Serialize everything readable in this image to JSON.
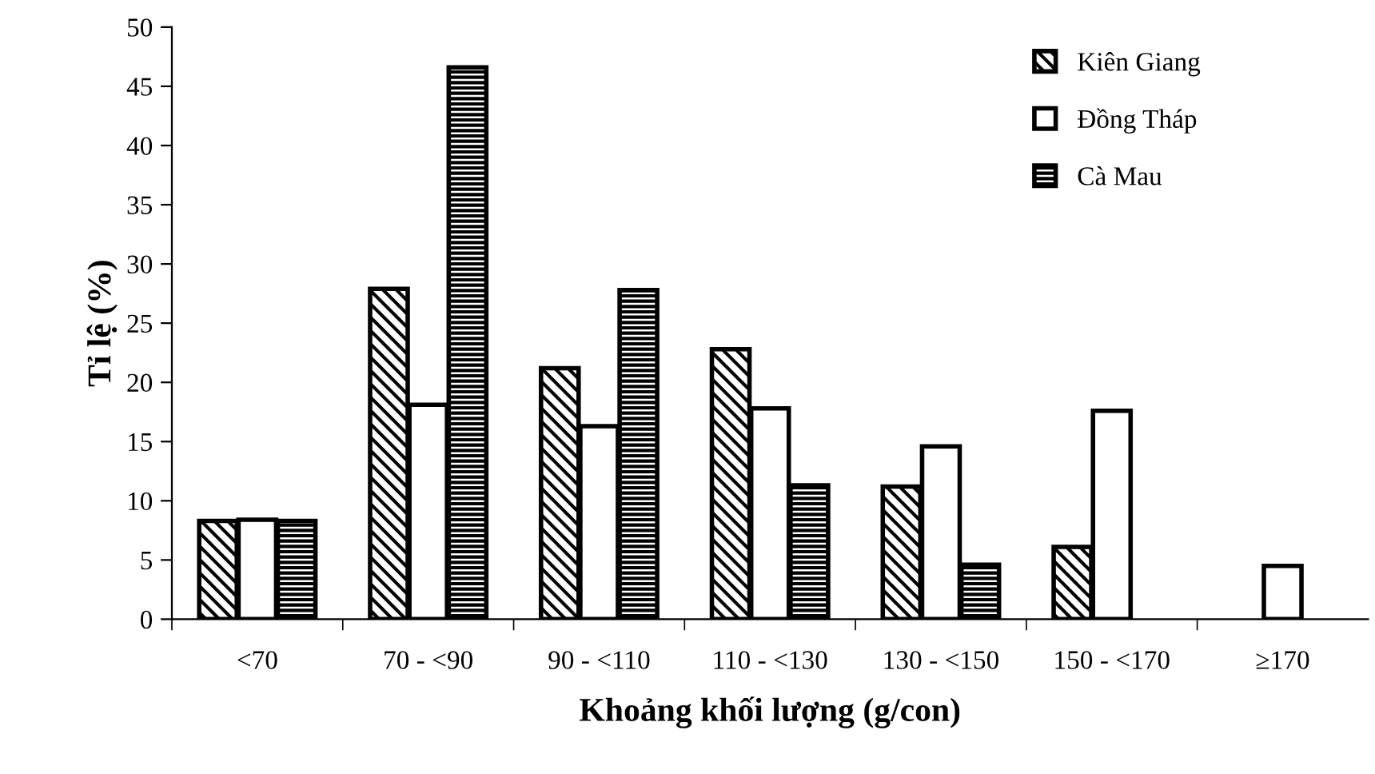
{
  "chart_data": {
    "type": "bar",
    "xlabel": "Khoảng khối lượng (g/con)",
    "ylabel": "Tỉ lệ (%)",
    "categories": [
      "<70",
      "70 - <90",
      "90 - <110",
      "110 - <130",
      "130 - <150",
      "150 - <170",
      "≥170"
    ],
    "series": [
      {
        "name": "Kiên Giang",
        "color": "#000000",
        "values": [
          8.3,
          27.9,
          21.2,
          22.8,
          11.2,
          6.1,
          null
        ]
      },
      {
        "name": "Đồng Tháp",
        "color": "#000000",
        "values": [
          8.4,
          18.1,
          16.3,
          17.8,
          14.6,
          17.6,
          4.5
        ]
      },
      {
        "name": "Cà Mau",
        "color": "#000000",
        "values": [
          8.3,
          46.6,
          27.8,
          11.3,
          4.6,
          null,
          null
        ]
      }
    ],
    "ylim": [
      0,
      50
    ],
    "yticks": [
      0,
      5,
      10,
      15,
      20,
      25,
      30,
      35,
      40,
      45,
      50
    ],
    "grid": false,
    "legend": "top right"
  }
}
